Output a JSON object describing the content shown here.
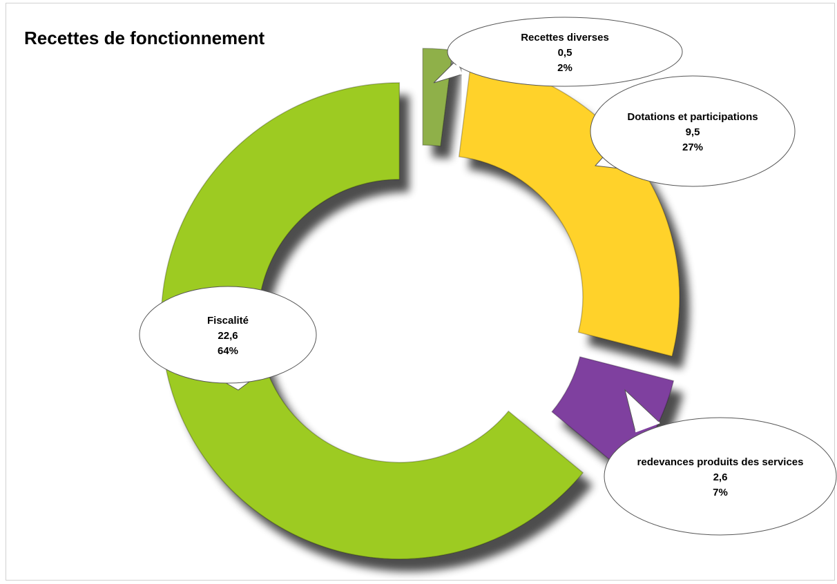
{
  "chart_data": {
    "type": "donut",
    "title": "Recettes de fonctionnement",
    "categories": [
      "Recettes diverses",
      "Dotations et participations",
      "redevances produits des services",
      "Fiscalité"
    ],
    "values": [
      0.5,
      9.5,
      2.6,
      22.6
    ],
    "value_labels": [
      "0,5",
      "9,5",
      "2,6",
      "22,6"
    ],
    "percents": [
      2,
      27,
      7,
      64
    ],
    "percent_labels": [
      "2%",
      "27%",
      "7%",
      "64%"
    ],
    "colors": [
      "#8fb04a",
      "#ffd22a",
      "#7f3f9f",
      "#9dcb22"
    ]
  }
}
